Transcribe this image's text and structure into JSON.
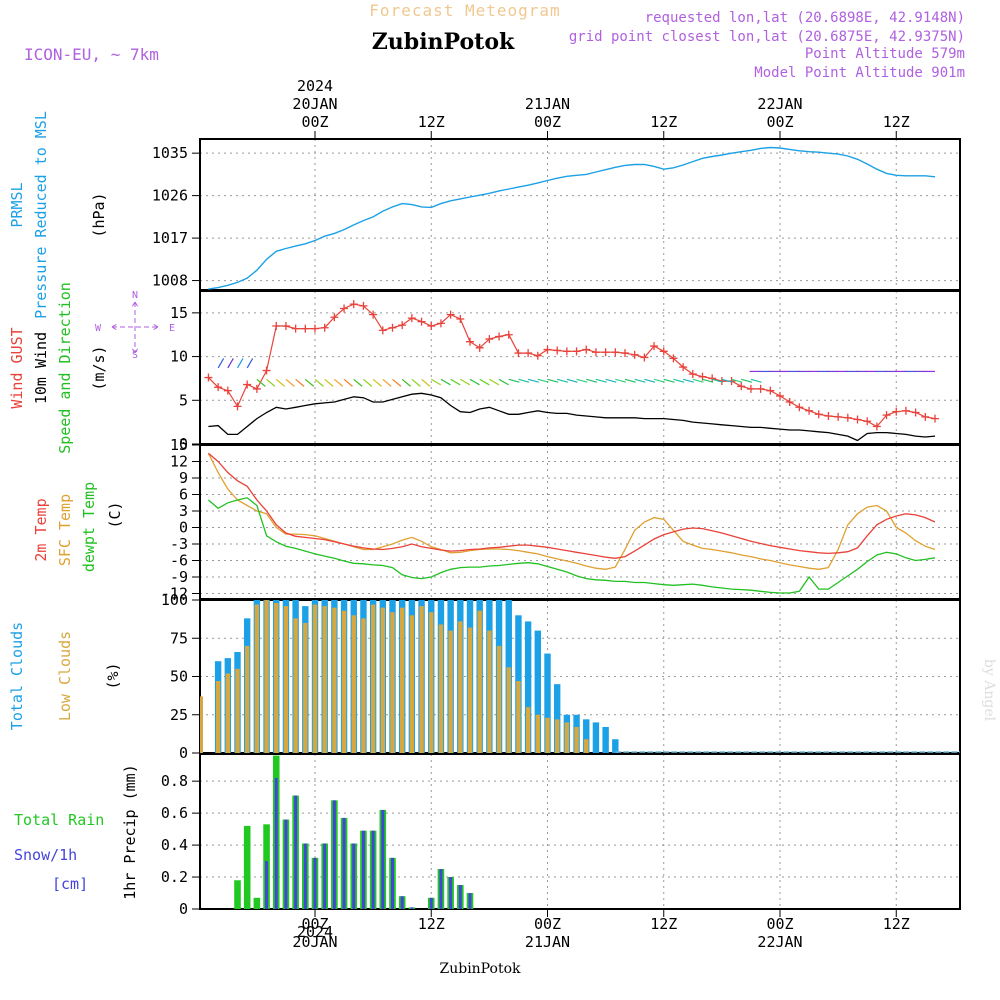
{
  "header": {
    "banner": "Forecast Meteogram",
    "location": "ZubinPotok",
    "model": "ICON-EU, ~ 7km",
    "requested": "requested lon,lat (20.6898E, 42.9148N)",
    "closest": "grid point closest lon,lat (20.6875E, 42.9375N)",
    "point_alt": "Point Altitude 579m",
    "model_alt": "Model Point Altitude 901m",
    "footer": "ZubinPotok",
    "credit": "by Angel"
  },
  "time_axis": {
    "top_year": "2024",
    "bottom_year": "2024",
    "ticks": [
      {
        "t": 0,
        "label": "00Z",
        "date": "20JAN"
      },
      {
        "t": 12,
        "label": "12Z",
        "date": ""
      },
      {
        "t": 24,
        "label": "00Z",
        "date": "21JAN"
      },
      {
        "t": 36,
        "label": "12Z",
        "date": ""
      },
      {
        "t": 48,
        "label": "00Z",
        "date": "22JAN"
      },
      {
        "t": 60,
        "label": "12Z",
        "date": ""
      }
    ]
  },
  "panel_labels": {
    "p1": [
      "PRMSL",
      "Pressure Reduced to MSL",
      "(hPa)"
    ],
    "p2": [
      "Wind GUST",
      "10m Wind",
      "Speed and Direction",
      "(m/s)"
    ],
    "compass": {
      "n": "N",
      "s": "S",
      "w": "W",
      "e": "E"
    },
    "p3": [
      "2m Temp",
      "SFC Temp",
      "dewpt Temp",
      "(C)"
    ],
    "p4": [
      "Total Clouds",
      "Low Clouds",
      "(%)"
    ],
    "p5_left": [
      "Total  Rain",
      "Snow/1h",
      "[cm]"
    ],
    "p5_axis": "1hr Precip (mm)"
  },
  "colors": {
    "pressure": "#1ca0e6",
    "gust": "#e8423a",
    "wind": "#000000",
    "temp2m": "#e8423a",
    "sfc": "#e0a030",
    "dewpt": "#22c022",
    "total_clouds": "#1ca0e6",
    "low_clouds": "#d8a840",
    "rain": "#22c822",
    "snow": "#4444dd",
    "header_purple": "#b060e0",
    "banner": "#f0c890"
  },
  "chart_data": [
    {
      "type": "line",
      "name": "PRMSL",
      "ylabel": "(hPa)",
      "yticks": [
        1008,
        1017,
        1026,
        1035
      ],
      "ylim": [
        1006,
        1038
      ],
      "x": [
        -11,
        -10,
        -9,
        -8,
        -7,
        -6,
        -5,
        -4,
        -3,
        -2,
        -1,
        0,
        1,
        2,
        3,
        4,
        5,
        6,
        7,
        8,
        9,
        10,
        11,
        12,
        13,
        14,
        15,
        16,
        17,
        18,
        19,
        20,
        21,
        22,
        23,
        24,
        25,
        26,
        27,
        28,
        29,
        30,
        31,
        32,
        33,
        34,
        35,
        36,
        37,
        38,
        39,
        40,
        41,
        42,
        43,
        44,
        45,
        46,
        47,
        48,
        49,
        50,
        51,
        52,
        53,
        54,
        55,
        56,
        57,
        58,
        59,
        60,
        61,
        62,
        63,
        64
      ],
      "values": [
        1006.2,
        1006.5,
        1007,
        1007.6,
        1008.5,
        1010.2,
        1012.5,
        1014.2,
        1014.8,
        1015.3,
        1015.8,
        1016.5,
        1017.4,
        1018,
        1018.8,
        1019.8,
        1020.7,
        1021.5,
        1022.7,
        1023.6,
        1024.3,
        1024.1,
        1023.6,
        1023.5,
        1024.3,
        1024.9,
        1025.3,
        1025.7,
        1026.1,
        1026.5,
        1027,
        1027.4,
        1027.8,
        1028.2,
        1028.7,
        1029.2,
        1029.7,
        1030.1,
        1030.3,
        1030.5,
        1031,
        1031.5,
        1032,
        1032.4,
        1032.6,
        1032.6,
        1032.2,
        1031.6,
        1031.9,
        1032.5,
        1033.2,
        1033.9,
        1034.3,
        1034.6,
        1035,
        1035.3,
        1035.6,
        1036,
        1036.2,
        1036.1,
        1035.8,
        1035.5,
        1035.3,
        1035.2,
        1035,
        1034.8,
        1034.4,
        1033.7,
        1032.7,
        1031.6,
        1030.7,
        1030.3,
        1030.2,
        1030.2,
        1030.2,
        1030.0
      ]
    },
    {
      "type": "line",
      "name": "Wind",
      "ylabel": "(m/s)",
      "yticks": [
        0,
        5,
        10,
        15
      ],
      "ylim": [
        0,
        17.5
      ],
      "x": [
        -11,
        -10,
        -9,
        -8,
        -7,
        -6,
        -5,
        -4,
        -3,
        -2,
        -1,
        0,
        1,
        2,
        3,
        4,
        5,
        6,
        7,
        8,
        9,
        10,
        11,
        12,
        13,
        14,
        15,
        16,
        17,
        18,
        19,
        20,
        21,
        22,
        23,
        24,
        25,
        26,
        27,
        28,
        29,
        30,
        31,
        32,
        33,
        34,
        35,
        36,
        37,
        38,
        39,
        40,
        41,
        42,
        43,
        44,
        45,
        46,
        47,
        48,
        49,
        50,
        51,
        52,
        53,
        54,
        55,
        56,
        57,
        58,
        59,
        60,
        61,
        62,
        63,
        64
      ],
      "gust": [
        7.6,
        6.5,
        6.1,
        4.3,
        6.8,
        6.3,
        8.4,
        13.5,
        13.5,
        13.2,
        13.2,
        13.2,
        13.3,
        14.5,
        15.5,
        16,
        15.8,
        14.8,
        13,
        13.3,
        13.6,
        14.4,
        14,
        13.5,
        13.8,
        14.8,
        14.3,
        11.7,
        11,
        12,
        12.3,
        12.5,
        10.4,
        10.4,
        10.1,
        10.8,
        10.7,
        10.6,
        10.6,
        10.8,
        10.5,
        10.5,
        10.5,
        10.4,
        10.2,
        9.9,
        11.2,
        10.6,
        9.8,
        8.8,
        8,
        7.7,
        7.5,
        7.2,
        7.2,
        6.6,
        6.3,
        6.3,
        6.1,
        5.5,
        4.8,
        4.2,
        3.8,
        3.4,
        3.2,
        3.1,
        3,
        2.8,
        2.6,
        2,
        3.3,
        3.7,
        3.8,
        3.6,
        3.1,
        2.9
      ],
      "wind": [
        2,
        2.1,
        1.1,
        1.1,
        2,
        2.9,
        3.6,
        4.2,
        4,
        4.2,
        4.4,
        4.6,
        4.7,
        4.8,
        5.1,
        5.4,
        5.3,
        4.8,
        4.8,
        5.1,
        5.4,
        5.7,
        5.8,
        5.6,
        5.3,
        4.4,
        3.7,
        3.6,
        4,
        4.2,
        3.8,
        3.4,
        3.4,
        3.6,
        3.8,
        3.6,
        3.5,
        3.5,
        3.3,
        3.2,
        3.1,
        3,
        3,
        3,
        3,
        2.9,
        2.9,
        2.9,
        2.8,
        2.7,
        2.5,
        2.4,
        2.3,
        2.2,
        2.1,
        2,
        1.9,
        1.9,
        1.8,
        1.7,
        1.6,
        1.6,
        1.5,
        1.4,
        1.3,
        1.1,
        0.9,
        0.4,
        1.2,
        1.3,
        1.3,
        1.2,
        1.1,
        0.9,
        0.8,
        0.9
      ],
      "legend_dirs": [
        "N",
        "S",
        "W",
        "E"
      ]
    },
    {
      "type": "line",
      "name": "Temperature",
      "ylabel": "(C)",
      "yticks": [
        -12,
        -9,
        -6,
        -3,
        0,
        3,
        6,
        9,
        12,
        15
      ],
      "ylim": [
        -13,
        15
      ],
      "x": [
        -11,
        -10,
        -9,
        -8,
        -7,
        -6,
        -5,
        -4,
        -3,
        -2,
        -1,
        0,
        1,
        2,
        3,
        4,
        5,
        6,
        7,
        8,
        9,
        10,
        11,
        12,
        13,
        14,
        15,
        16,
        17,
        18,
        19,
        20,
        21,
        22,
        23,
        24,
        25,
        26,
        27,
        28,
        29,
        30,
        31,
        32,
        33,
        34,
        35,
        36,
        37,
        38,
        39,
        40,
        41,
        42,
        43,
        44,
        45,
        46,
        47,
        48,
        49,
        50,
        51,
        52,
        53,
        54,
        55,
        56,
        57,
        58,
        59,
        60,
        61,
        62,
        63,
        64
      ],
      "temp2m": [
        13.5,
        12,
        10,
        8.5,
        7.5,
        5,
        3,
        0.5,
        -1,
        -1.6,
        -1.8,
        -2,
        -2.2,
        -2.6,
        -3,
        -3.4,
        -3.7,
        -3.9,
        -4,
        -3.8,
        -3.5,
        -3,
        -3.5,
        -3.8,
        -4.1,
        -4.3,
        -4.2,
        -4,
        -3.9,
        -3.7,
        -3.6,
        -3.4,
        -3.2,
        -3.2,
        -3.4,
        -3.6,
        -3.9,
        -4.2,
        -4.5,
        -4.8,
        -5.1,
        -5.4,
        -5.6,
        -5.3,
        -4.3,
        -3.2,
        -2.1,
        -1.3,
        -0.8,
        -0.3,
        -0.1,
        -0.2,
        -0.6,
        -1,
        -1.5,
        -2,
        -2.5,
        -2.9,
        -3.3,
        -3.6,
        -3.9,
        -4.2,
        -4.4,
        -4.6,
        -4.7,
        -4.6,
        -4.4,
        -3.7,
        -1.5,
        0.5,
        1.5,
        2.1,
        2.5,
        2.3,
        1.8,
        1
      ],
      "sfc": [
        13.5,
        10,
        7,
        5,
        4,
        3,
        2.5,
        0,
        -1.2,
        -1.2,
        -1.3,
        -1.5,
        -2,
        -2.5,
        -3,
        -3.5,
        -4,
        -4,
        -3.5,
        -3,
        -2.3,
        -1.8,
        -2.5,
        -3.5,
        -4,
        -4.6,
        -4.5,
        -4.2,
        -4,
        -3.9,
        -3.9,
        -4,
        -4.2,
        -4.5,
        -4.8,
        -5.3,
        -5.7,
        -6.1,
        -6.5,
        -7,
        -7.4,
        -7.6,
        -7.2,
        -4,
        -0.5,
        1,
        1.8,
        1.5,
        -0.5,
        -2.5,
        -3.2,
        -3.8,
        -4,
        -4.3,
        -4.6,
        -5,
        -5.3,
        -5.7,
        -6,
        -6.4,
        -6.8,
        -7.1,
        -7.4,
        -7.6,
        -7.3,
        -4,
        0.5,
        2.5,
        3.7,
        4,
        3,
        0,
        -1,
        -2.4,
        -3.4,
        -4
      ],
      "dewpt": [
        5,
        3.5,
        4.5,
        5,
        5.4,
        4,
        -1.5,
        -2.6,
        -3.4,
        -3.8,
        -4.3,
        -4.8,
        -5.2,
        -5.6,
        -6.1,
        -6.5,
        -6.6,
        -6.8,
        -6.9,
        -7.3,
        -8.6,
        -9.1,
        -9.3,
        -9,
        -8.2,
        -7.6,
        -7.3,
        -7.2,
        -7.2,
        -7,
        -6.9,
        -6.7,
        -6.5,
        -6.4,
        -6.6,
        -7.1,
        -7.6,
        -8.1,
        -8.8,
        -9.3,
        -9.5,
        -9.6,
        -9.8,
        -9.8,
        -10,
        -10,
        -10.2,
        -10.4,
        -10.5,
        -10.4,
        -10.3,
        -10.5,
        -10.8,
        -11,
        -11.2,
        -11.3,
        -11.4,
        -11.6,
        -11.8,
        -11.9,
        -11.9,
        -11.6,
        -9,
        -11.2,
        -11.2,
        -10,
        -8.8,
        -7.6,
        -6.2,
        -5,
        -4.5,
        -4.8,
        -5.5,
        -6,
        -5.8,
        -5.5
      ]
    },
    {
      "type": "bar",
      "name": "Clouds",
      "ylabel": "(%)",
      "yticks": [
        0,
        25,
        50,
        75,
        100
      ],
      "ylim": [
        0,
        100
      ],
      "x": [
        -10,
        -9,
        -8,
        -7,
        -6,
        -5,
        -4,
        -3,
        -2,
        -1,
        0,
        1,
        2,
        3,
        4,
        5,
        6,
        7,
        8,
        9,
        10,
        11,
        12,
        13,
        14,
        15,
        16,
        17,
        18,
        19,
        20,
        21,
        22,
        23,
        24,
        25,
        26,
        27,
        28,
        29,
        30,
        31,
        32,
        33,
        34,
        35,
        36,
        37,
        38,
        39,
        40,
        41,
        42,
        43,
        44,
        45,
        46,
        47,
        48,
        49,
        50,
        51,
        52,
        53,
        54,
        55,
        56,
        57,
        58,
        59,
        60,
        61,
        62,
        63,
        64
      ],
      "total": [
        60,
        62,
        66,
        88,
        100,
        100,
        100,
        100,
        100,
        96,
        100,
        100,
        100,
        100,
        100,
        100,
        100,
        100,
        100,
        100,
        100,
        100,
        100,
        100,
        100,
        100,
        100,
        100,
        100,
        100,
        100,
        90,
        86,
        80,
        65,
        45,
        25,
        25,
        22,
        20,
        17,
        9,
        0,
        0,
        0,
        0,
        0,
        0,
        0,
        0,
        0,
        0,
        0,
        0,
        0,
        0,
        0,
        0,
        0,
        0,
        0,
        0,
        0,
        0,
        0,
        0,
        0,
        0,
        0,
        0,
        0,
        0,
        0,
        0,
        0
      ],
      "low": [
        47,
        52,
        55,
        70,
        97,
        100,
        98,
        96,
        88,
        85,
        97,
        96,
        95,
        93,
        90,
        88,
        97,
        95,
        92,
        95,
        90,
        96,
        92,
        84,
        80,
        86,
        82,
        93,
        80,
        70,
        56,
        47,
        30,
        25,
        23,
        22,
        20,
        17,
        9,
        0,
        0,
        0,
        0,
        0,
        0,
        0,
        0,
        0,
        0,
        0,
        0,
        0,
        0,
        0,
        0,
        0,
        0,
        0,
        0,
        0,
        0,
        0,
        0,
        0,
        0,
        0,
        0,
        0,
        0,
        0,
        0,
        0,
        0,
        0,
        0
      ],
      "first_low": 37
    },
    {
      "type": "bar",
      "name": "Precip",
      "ylabel": "1hr Precip (mm)",
      "yticks": [
        0,
        0.2,
        0.4,
        0.6,
        0.8
      ],
      "ylim": [
        0,
        0.97
      ],
      "x": [
        -8,
        -7,
        -6,
        -5,
        -4,
        -3,
        -2,
        -1,
        0,
        1,
        2,
        3,
        4,
        5,
        6,
        7,
        8,
        9,
        10,
        11,
        12,
        13,
        14,
        15,
        16,
        17,
        18
      ],
      "rain": [
        0.18,
        0.52,
        0.07,
        0.53,
        0.96,
        0.56,
        0.71,
        0.41,
        0.32,
        0.41,
        0.68,
        0.57,
        0.41,
        0.49,
        0.49,
        0.62,
        0.32,
        0.08,
        0.01,
        0,
        0.07,
        0.25,
        0.2,
        0.15,
        0.1,
        0,
        0
      ],
      "snow": [
        0,
        0,
        0,
        0.3,
        0.82,
        0.56,
        0.71,
        0.41,
        0.32,
        0.41,
        0.68,
        0.57,
        0.41,
        0.49,
        0.49,
        0.62,
        0.32,
        0.08,
        0.01,
        0,
        0.07,
        0.25,
        0.2,
        0.15,
        0.1,
        0,
        0
      ]
    }
  ]
}
